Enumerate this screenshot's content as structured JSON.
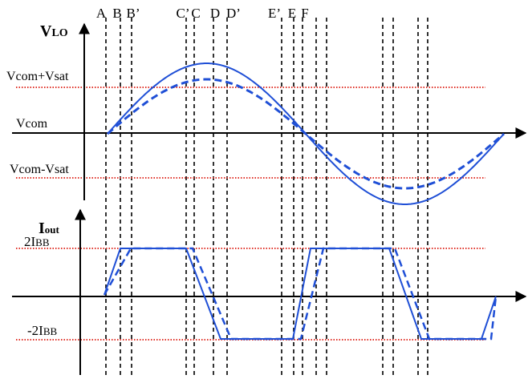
{
  "top_panel": {
    "axis_label": {
      "main": "V",
      "sub": "LO"
    },
    "levels": {
      "upper": "Vcom+Vsat",
      "mid": "Vcom",
      "lower": "Vcom-Vsat"
    }
  },
  "bottom_panel": {
    "axis_label": {
      "main": "I",
      "sub": "out"
    },
    "levels": {
      "upper": {
        "main": "2I",
        "sub": "BB"
      },
      "lower": {
        "main": "-2I",
        "sub": "BB"
      }
    }
  },
  "markers": [
    "A",
    "B",
    "B’",
    "C’",
    "C",
    "D",
    "D’",
    "E’",
    "E",
    "F"
  ],
  "colors": {
    "signal": "#1f4fd6",
    "reference": "#e0342b",
    "guide": "#000000"
  }
}
